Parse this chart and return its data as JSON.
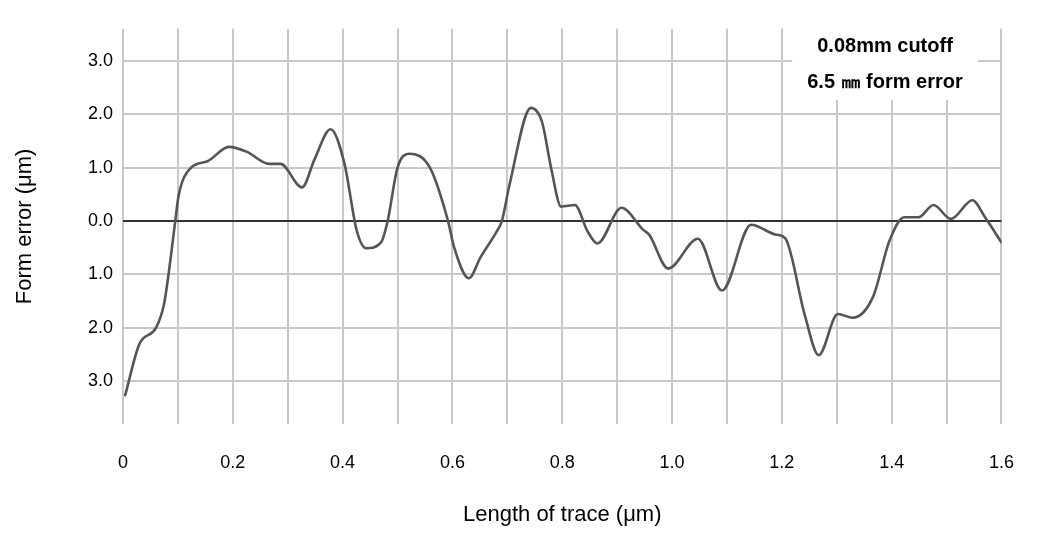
{
  "chart_data": {
    "type": "line",
    "xlabel": "Length of trace (μm)",
    "ylabel": "Form error (μm)",
    "annotations": [
      "0.08mm cutoff",
      "6.5 ㎜ form error"
    ],
    "xlim": [
      0,
      1.6
    ],
    "ylim": [
      -3.8,
      3.6
    ],
    "xticks": [
      0,
      {
        "value": 0.1,
        "label": null
      },
      0.2,
      {
        "value": 0.3,
        "label": null
      },
      0.4,
      {
        "value": 0.5,
        "label": null
      },
      0.6,
      {
        "value": 0.7,
        "label": null
      },
      0.8,
      {
        "value": 0.9,
        "label": null
      },
      {
        "value": 1,
        "label": "1.0"
      },
      {
        "value": 1.1,
        "label": null
      },
      1.2,
      {
        "value": 1.3,
        "label": null
      },
      1.4,
      {
        "value": 1.5,
        "label": null
      },
      1.6
    ],
    "yticks": [
      {
        "value": 3,
        "label": "3.0"
      },
      {
        "value": 2,
        "label": "2.0"
      },
      {
        "value": 1,
        "label": "1.0"
      },
      {
        "value": 0,
        "label": "0.0"
      },
      {
        "value": -1,
        "label": "1.0"
      },
      {
        "value": -2,
        "label": "2.0"
      },
      {
        "value": -3,
        "label": "3.0"
      }
    ],
    "grid": true,
    "legend": false,
    "marker": "none",
    "line_style": "solid",
    "ref_lines": [
      {
        "axis": "y",
        "value": 0,
        "color": "#333333"
      }
    ],
    "series": [
      {
        "color": "#555555",
        "x": [
          0.004,
          0.03,
          0.06,
          0.075,
          0.095,
          0.101,
          0.124,
          0.154,
          0.193,
          0.225,
          0.266,
          0.287,
          0.326,
          0.349,
          0.378,
          0.403,
          0.426,
          0.443,
          0.47,
          0.482,
          0.5,
          0.521,
          0.559,
          0.592,
          0.603,
          0.63,
          0.651,
          0.681,
          0.69,
          0.704,
          0.743,
          0.763,
          0.78,
          0.798,
          0.823,
          0.846,
          0.864,
          0.908,
          0.947,
          0.958,
          0.993,
          1.047,
          1.091,
          1.144,
          1.188,
          1.206,
          1.242,
          1.267,
          1.302,
          1.329,
          1.366,
          1.396,
          1.423,
          1.449,
          1.476,
          1.508,
          1.547,
          1.57,
          1.6
        ],
        "values": [
          -3.26,
          -2.3,
          -2.0,
          -1.54,
          -0.02,
          0.46,
          1.0,
          1.12,
          1.39,
          1.3,
          1.07,
          1.07,
          0.63,
          1.16,
          1.72,
          1.09,
          -0.19,
          -0.51,
          -0.4,
          0,
          1.0,
          1.26,
          1.0,
          0,
          -0.49,
          -1.07,
          -0.68,
          -0.19,
          0,
          0.68,
          2.12,
          1.86,
          0.98,
          0.27,
          0.3,
          -0.19,
          -0.42,
          0.25,
          -0.16,
          -0.25,
          -0.89,
          -0.33,
          -1.3,
          -0.07,
          -0.25,
          -0.32,
          -1.77,
          -2.51,
          -1.74,
          -1.81,
          -1.42,
          -0.37,
          0.07,
          0.07,
          0.3,
          0.04,
          0.39,
          0.07,
          -0.4
        ]
      }
    ]
  }
}
